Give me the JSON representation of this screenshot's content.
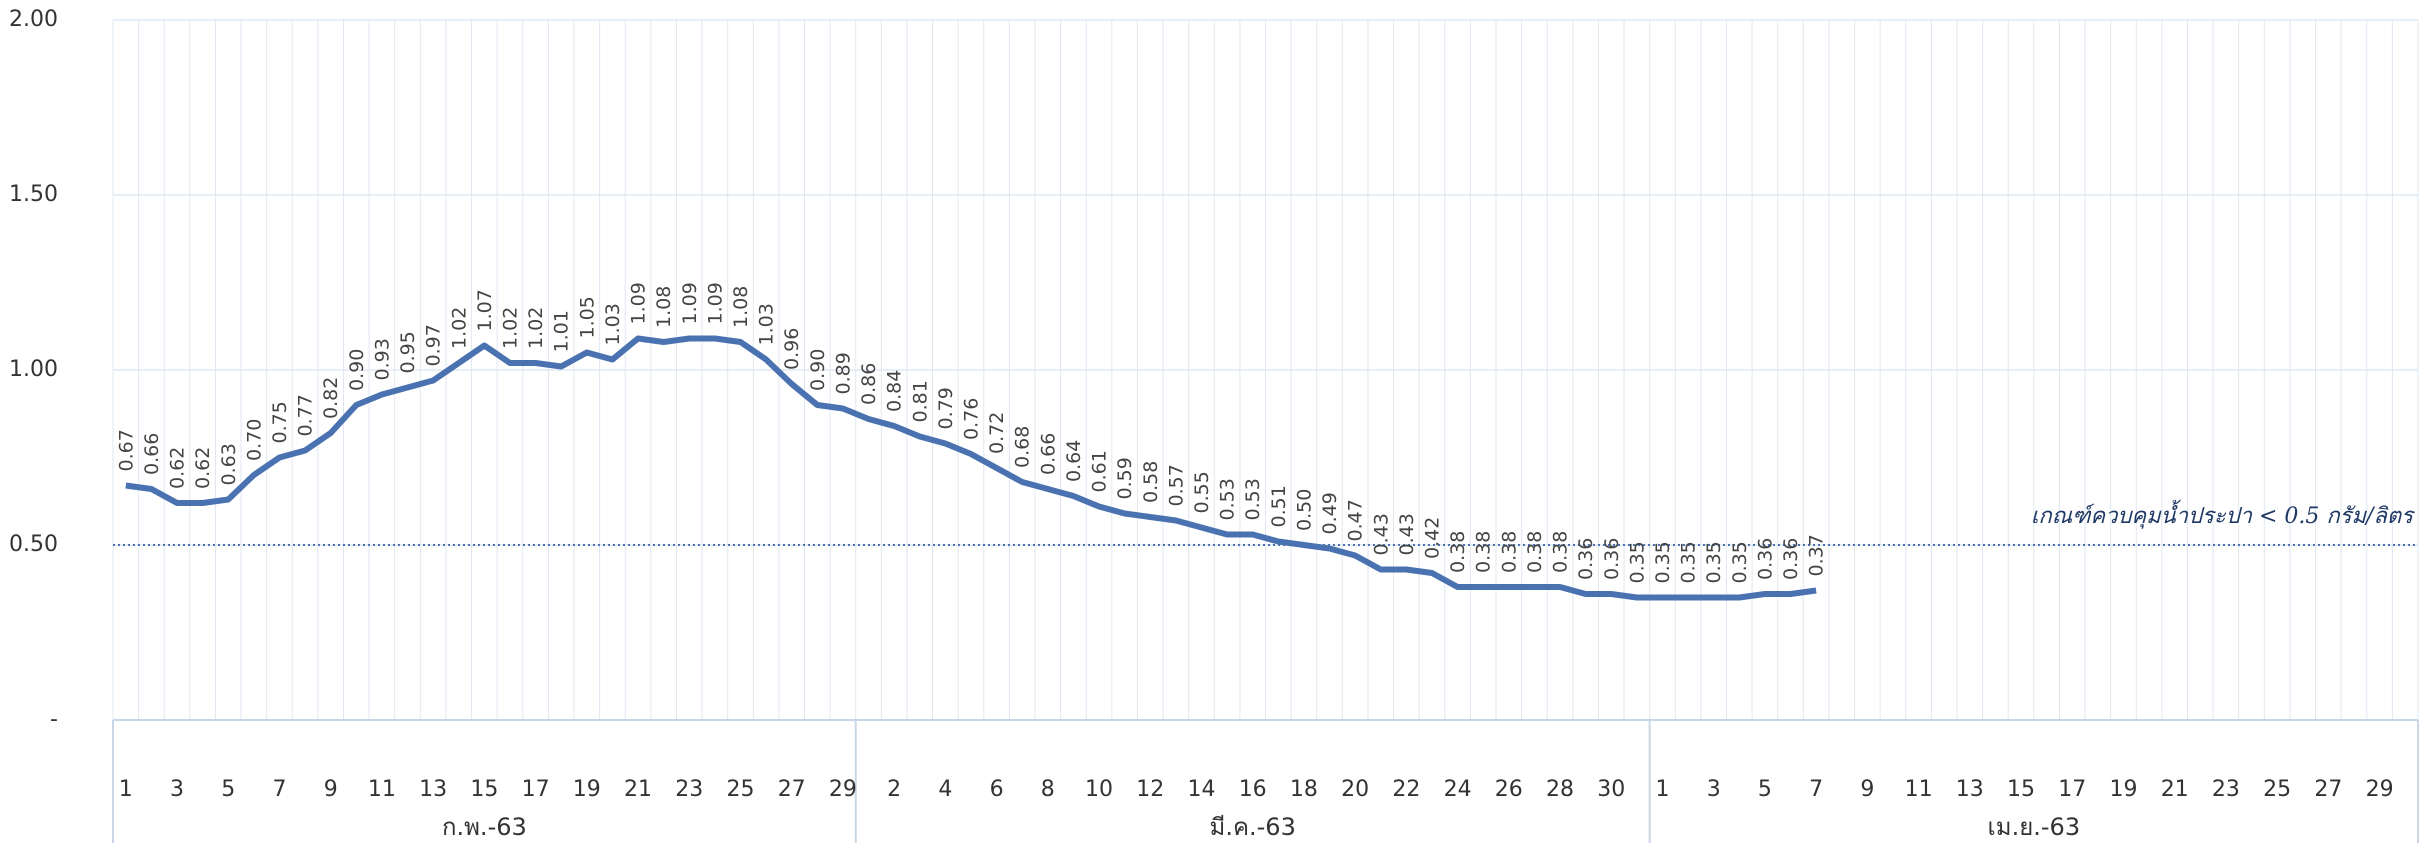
{
  "chart_data": {
    "type": "line",
    "categories": [
      "1",
      null,
      "3",
      null,
      "5",
      null,
      "7",
      null,
      "9",
      null,
      "11",
      null,
      "13",
      null,
      "15",
      null,
      "17",
      null,
      "19",
      null,
      "21",
      null,
      "23",
      null,
      "25",
      null,
      "27",
      null,
      "29",
      null,
      "2",
      null,
      "4",
      null,
      "6",
      null,
      "8",
      null,
      "10",
      null,
      "12",
      null,
      "14",
      null,
      "16",
      null,
      "18",
      null,
      "20",
      null,
      "22",
      null,
      "24",
      null,
      "26",
      null,
      "28",
      null,
      "30",
      null,
      "1",
      null,
      "3",
      null,
      "5",
      null,
      "7",
      null,
      "9",
      null,
      "11",
      null,
      "13",
      null,
      "15",
      null,
      "17",
      null,
      "19",
      null,
      "21",
      null,
      "23",
      null,
      "25",
      null,
      "27",
      null,
      "29",
      null
    ],
    "groups": [
      {
        "label": "ก.พ.-63",
        "span": 29
      },
      {
        "label": "มี.ค.-63",
        "span": 31
      },
      {
        "label": "เม.ย.-63",
        "span": 30
      }
    ],
    "series": [
      {
        "color": "#4a72b0",
        "values": [
          0.67,
          0.66,
          0.62,
          0.62,
          0.63,
          0.7,
          0.75,
          0.77,
          0.82,
          0.9,
          0.93,
          0.95,
          0.97,
          1.02,
          1.07,
          1.02,
          1.02,
          1.01,
          1.05,
          1.03,
          1.09,
          1.08,
          1.09,
          1.09,
          1.08,
          1.03,
          0.96,
          0.9,
          0.89,
          0.86,
          0.84,
          0.81,
          0.79,
          0.76,
          0.72,
          0.68,
          0.66,
          0.64,
          0.61,
          0.59,
          0.58,
          0.57,
          0.55,
          0.53,
          0.53,
          0.51,
          0.5,
          0.49,
          0.47,
          0.43,
          0.43,
          0.42,
          0.38,
          0.38,
          0.38,
          0.38,
          0.38,
          0.36,
          0.36,
          0.35,
          0.35,
          0.35,
          0.35,
          0.35,
          0.36,
          0.36,
          0.37,
          null,
          null,
          null,
          null,
          null,
          null,
          null,
          null,
          null,
          null,
          null,
          null,
          null,
          null,
          null,
          null,
          null,
          null,
          null,
          null,
          null,
          null,
          null
        ],
        "value_labels": [
          "0.67",
          "0.66",
          "0.62",
          "0.62",
          "0.63",
          "0.70",
          "0.75",
          "0.77",
          "0.82",
          "0.90",
          "0.93",
          "0.95",
          "0.97",
          "1.02",
          "1.07",
          "1.02",
          "1.02",
          "1.01",
          "1.05",
          "1.03",
          "1.09",
          "1.08",
          "1.09",
          "1.09",
          "1.08",
          "1.03",
          "0.96",
          "0.90",
          "0.89",
          "0.86",
          "0.84",
          "0.81",
          "0.79",
          "0.76",
          "0.72",
          "0.68",
          "0.66",
          "0.64",
          "0.61",
          "0.59",
          "0.58",
          "0.57",
          "0.55",
          "0.53",
          "0.53",
          "0.51",
          "0.50",
          "0.49",
          "0.47",
          "0.43",
          "0.43",
          "0.42",
          "0.38",
          "0.38",
          "0.38",
          "0.38",
          "0.38",
          "0.36",
          "0.36",
          "0.35",
          "0.35",
          "0.35",
          "0.35",
          "0.35",
          "0.36",
          "0.36",
          "0.37",
          null,
          null,
          null,
          null,
          null,
          null,
          null,
          null,
          null,
          null,
          null,
          null,
          null,
          null,
          null,
          null,
          null,
          null,
          null,
          null,
          null,
          null,
          null
        ]
      }
    ],
    "ylim": [
      0,
      2
    ],
    "yticks": [
      {
        "value": 0,
        "label": "-"
      },
      {
        "value": 0.5,
        "label": "0.50"
      },
      {
        "value": 1,
        "label": "1.00"
      },
      {
        "value": 1.5,
        "label": "1.50"
      },
      {
        "value": 2,
        "label": "2.00"
      }
    ],
    "reference_line": {
      "value": 0.5,
      "label": "เกณฑ์ควบคุมน้ำประปา < 0.5 กรัม/ลิตร",
      "color": "#4a72b0"
    },
    "grid": true
  }
}
